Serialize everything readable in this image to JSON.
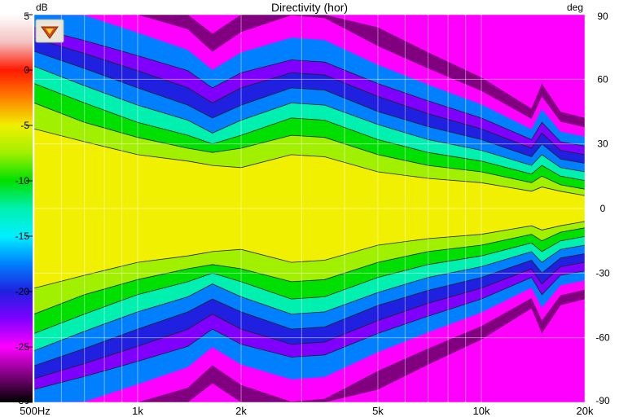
{
  "chart_data": {
    "type": "heatmap",
    "title": "Directivity (hor)",
    "colorbar": {
      "unit_label": "dB",
      "range": [
        -30,
        5
      ],
      "ticks": [
        5,
        0,
        -5,
        -10,
        -15,
        -20,
        -25,
        -30
      ],
      "tick_labels": [
        "5",
        "0",
        "-5",
        "-10",
        "-15",
        "-20",
        "-25",
        "-30"
      ],
      "colors": {
        "5": "#ffffff",
        "2.5": "#f4c0c0",
        "0": "#ff1a00",
        "-2.5": "#ff8000",
        "-5": "#f0f000",
        "-7.5": "#a0f000",
        "-10": "#00e000",
        "-12.5": "#00f0b0",
        "-15": "#00f0ff",
        "-17.5": "#0080ff",
        "-20": "#2020e0",
        "-22.5": "#8000ff",
        "-25": "#ff00ff",
        "-27.5": "#800080",
        "-30": "#000000"
      }
    },
    "x_axis": {
      "scale": "log",
      "range_hz": [
        500,
        20000
      ],
      "ticks": [
        500,
        1000,
        2000,
        5000,
        10000,
        20000
      ],
      "tick_labels": [
        "500Hz",
        "1k",
        "2k",
        "5k",
        "10k",
        "20k"
      ]
    },
    "y_axis": {
      "unit_label": "deg",
      "range": [
        -90,
        90
      ],
      "ticks": [
        90,
        60,
        30,
        0,
        -30,
        -60,
        -90
      ],
      "tick_labels": [
        "90",
        "60",
        "30",
        "0",
        "-30",
        "-60",
        "-90"
      ]
    },
    "contours_db": [
      -3,
      -6,
      -9,
      -12,
      -15,
      -18,
      -21
    ],
    "contour_angles": {
      "frequencies_hz": [
        500,
        700,
        1000,
        1400,
        1650,
        2000,
        2800,
        3500,
        5000,
        7000,
        10000,
        14000,
        15000,
        17000,
        20000
      ],
      "levels": [
        {
          "db": -3,
          "angle_deg": [
            37,
            31,
            25,
            22,
            20,
            19,
            25,
            24,
            17,
            14,
            12,
            8,
            10,
            8,
            6
          ]
        },
        {
          "db": -6,
          "angle_deg": [
            49,
            40,
            33,
            28,
            26,
            28,
            34,
            33,
            25,
            20,
            17,
            12,
            15,
            11,
            9
          ]
        },
        {
          "db": -9,
          "angle_deg": [
            58,
            49,
            40,
            34,
            30,
            34,
            42,
            41,
            32,
            26,
            22,
            16,
            20,
            15,
            13
          ]
        },
        {
          "db": -12,
          "angle_deg": [
            66,
            57,
            48,
            41,
            35,
            41,
            49,
            48,
            39,
            32,
            27,
            20,
            25,
            19,
            17
          ]
        },
        {
          "db": -15,
          "angle_deg": [
            73,
            65,
            56,
            48,
            42,
            48,
            56,
            55,
            45,
            38,
            32,
            24,
            30,
            23,
            21
          ]
        },
        {
          "db": -18,
          "angle_deg": [
            79,
            72,
            64,
            56,
            49,
            56,
            63,
            62,
            52,
            44,
            37,
            28,
            35,
            27,
            25
          ]
        },
        {
          "db": -21,
          "angle_deg": [
            84,
            78,
            71,
            64,
            56,
            63,
            69,
            68,
            58,
            50,
            42,
            32,
            40,
            31,
            29
          ]
        }
      ]
    },
    "grid": true
  }
}
